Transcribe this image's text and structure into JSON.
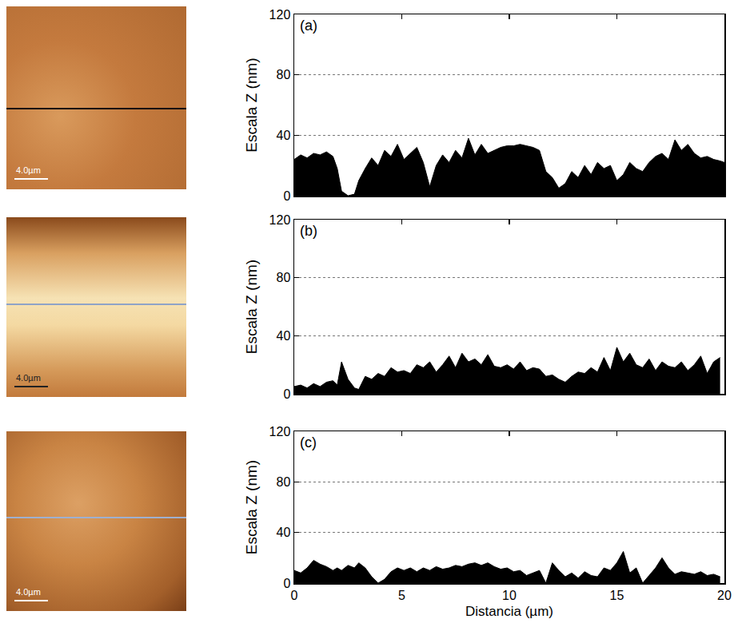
{
  "afm_images": [
    {
      "scale_bar": "4.0µm"
    },
    {
      "scale_bar": "4.0µm"
    },
    {
      "scale_bar": "4.0µm"
    }
  ],
  "chart_data": [
    {
      "type": "area",
      "annotations": [
        "(a)"
      ],
      "y_label": "Escala Z (nm)",
      "color": "#000000",
      "xlim": [
        0,
        20
      ],
      "xticks": [
        0,
        5,
        10,
        15,
        20
      ],
      "ylim": [
        0,
        120
      ],
      "yticks": [
        0,
        40,
        80,
        120
      ],
      "grid": "y",
      "tick_labels": "y",
      "x": [
        0,
        0.3,
        0.6,
        0.9,
        1.2,
        1.5,
        1.8,
        2.0,
        2.2,
        2.5,
        2.8,
        3.0,
        3.3,
        3.6,
        3.9,
        4.2,
        4.5,
        4.8,
        5.1,
        5.4,
        5.7,
        6.0,
        6.3,
        6.6,
        6.9,
        7.2,
        7.5,
        7.8,
        8.1,
        8.4,
        8.7,
        9.0,
        9.3,
        9.6,
        9.9,
        10.2,
        10.5,
        10.8,
        11.1,
        11.4,
        11.7,
        12.0,
        12.3,
        12.6,
        12.9,
        13.2,
        13.5,
        13.8,
        14.1,
        14.4,
        14.7,
        15.0,
        15.3,
        15.6,
        15.9,
        16.2,
        16.5,
        16.8,
        17.1,
        17.4,
        17.7,
        18.0,
        18.3,
        18.6,
        18.9,
        19.2,
        19.5,
        19.8,
        20.0
      ],
      "values": [
        24,
        27,
        25,
        28,
        27,
        29,
        26,
        18,
        3,
        0,
        1,
        10,
        18,
        25,
        20,
        30,
        26,
        34,
        24,
        28,
        32,
        22,
        6,
        20,
        27,
        22,
        30,
        25,
        38,
        27,
        34,
        28,
        30,
        32,
        33,
        33,
        34,
        33,
        32,
        30,
        16,
        12,
        5,
        8,
        16,
        12,
        20,
        14,
        22,
        18,
        20,
        10,
        14,
        22,
        18,
        16,
        22,
        26,
        28,
        24,
        37,
        30,
        34,
        28,
        25,
        26,
        24,
        23,
        22
      ]
    },
    {
      "type": "area",
      "annotations": [
        "(b)"
      ],
      "y_label": "Escala Z (nm)",
      "color": "#000000",
      "xlim": [
        0,
        20
      ],
      "xticks": [
        0,
        5,
        10,
        15,
        20
      ],
      "ylim": [
        0,
        120
      ],
      "yticks": [
        0,
        40,
        80,
        120
      ],
      "grid": "y",
      "tick_labels": "y",
      "x": [
        0,
        0.3,
        0.6,
        0.9,
        1.2,
        1.5,
        1.8,
        2.0,
        2.2,
        2.5,
        2.8,
        3.0,
        3.3,
        3.6,
        3.9,
        4.2,
        4.5,
        4.8,
        5.1,
        5.4,
        5.7,
        6.0,
        6.3,
        6.6,
        6.9,
        7.2,
        7.5,
        7.8,
        8.1,
        8.4,
        8.7,
        9.0,
        9.3,
        9.6,
        9.9,
        10.2,
        10.5,
        10.8,
        11.1,
        11.4,
        11.7,
        12.0,
        12.3,
        12.6,
        12.9,
        13.2,
        13.5,
        13.8,
        14.1,
        14.4,
        14.7,
        15.0,
        15.3,
        15.6,
        15.9,
        16.2,
        16.5,
        16.8,
        17.1,
        17.4,
        17.7,
        18.0,
        18.3,
        18.6,
        18.9,
        19.2,
        19.5,
        19.8
      ],
      "values": [
        5,
        6,
        4,
        7,
        5,
        8,
        9,
        6,
        22,
        10,
        4,
        3,
        12,
        10,
        14,
        12,
        18,
        15,
        16,
        14,
        20,
        18,
        22,
        15,
        20,
        26,
        18,
        28,
        22,
        24,
        20,
        27,
        19,
        18,
        20,
        17,
        22,
        16,
        18,
        17,
        12,
        13,
        10,
        8,
        12,
        15,
        14,
        18,
        15,
        25,
        16,
        32,
        22,
        28,
        20,
        18,
        24,
        16,
        22,
        19,
        18,
        22,
        16,
        20,
        26,
        14,
        22,
        25
      ]
    },
    {
      "type": "area",
      "annotations": [
        "(c)"
      ],
      "y_label": "Escala Z (nm)",
      "x_label": "Distancia (µm)",
      "color": "#000000",
      "xlim": [
        0,
        20
      ],
      "xticks": [
        0,
        5,
        10,
        15,
        20
      ],
      "ylim": [
        0,
        120
      ],
      "yticks": [
        0,
        40,
        80,
        120
      ],
      "grid": "y",
      "tick_labels": true,
      "x": [
        0,
        0.3,
        0.6,
        0.9,
        1.2,
        1.5,
        1.8,
        2.0,
        2.2,
        2.5,
        2.8,
        3.0,
        3.3,
        3.6,
        3.9,
        4.2,
        4.5,
        4.8,
        5.1,
        5.4,
        5.7,
        6.0,
        6.3,
        6.6,
        6.9,
        7.2,
        7.5,
        7.8,
        8.1,
        8.4,
        8.7,
        9.0,
        9.3,
        9.6,
        9.9,
        10.2,
        10.5,
        10.8,
        11.1,
        11.4,
        11.7,
        12.0,
        12.3,
        12.6,
        12.9,
        13.2,
        13.5,
        13.8,
        14.1,
        14.4,
        14.7,
        15.0,
        15.3,
        15.6,
        15.9,
        16.2,
        16.5,
        16.8,
        17.1,
        17.4,
        17.7,
        18.0,
        18.3,
        18.6,
        18.9,
        19.2,
        19.5,
        19.8
      ],
      "values": [
        10,
        8,
        12,
        18,
        15,
        13,
        10,
        12,
        10,
        14,
        12,
        16,
        12,
        5,
        0,
        3,
        9,
        12,
        10,
        12,
        9,
        12,
        10,
        13,
        11,
        12,
        14,
        13,
        15,
        16,
        14,
        16,
        13,
        11,
        12,
        9,
        10,
        6,
        8,
        10,
        0,
        16,
        10,
        5,
        8,
        4,
        9,
        6,
        5,
        12,
        10,
        16,
        25,
        8,
        12,
        0,
        6,
        12,
        20,
        12,
        7,
        9,
        8,
        7,
        9,
        6,
        7,
        5
      ]
    }
  ]
}
